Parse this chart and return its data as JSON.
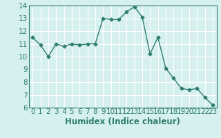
{
  "x": [
    0,
    1,
    2,
    3,
    4,
    5,
    6,
    7,
    8,
    9,
    10,
    11,
    12,
    13,
    14,
    15,
    16,
    17,
    18,
    19,
    20,
    21,
    22,
    23
  ],
  "y": [
    11.5,
    10.9,
    10.0,
    11.0,
    10.8,
    11.0,
    10.9,
    11.0,
    11.0,
    13.0,
    12.9,
    12.9,
    13.5,
    13.9,
    13.1,
    10.2,
    11.5,
    9.1,
    8.3,
    7.5,
    7.4,
    7.5,
    6.8,
    6.2
  ],
  "xlabel": "Humidex (Indice chaleur)",
  "ylim": [
    6,
    14
  ],
  "xlim": [
    -0.5,
    23.5
  ],
  "yticks": [
    6,
    7,
    8,
    9,
    10,
    11,
    12,
    13,
    14
  ],
  "xticks": [
    0,
    1,
    2,
    3,
    4,
    5,
    6,
    7,
    8,
    9,
    10,
    11,
    12,
    13,
    14,
    15,
    16,
    17,
    18,
    19,
    20,
    21,
    22,
    23
  ],
  "line_color": "#2e7d6e",
  "marker": "D",
  "marker_size": 2.5,
  "bg_color": "#d6f0ef",
  "grid_color": "#ffffff",
  "tick_color": "#2e7d6e",
  "label_color": "#2e7d6e",
  "font_size": 7.5,
  "xlabel_fontsize": 8.5,
  "linewidth": 1.0
}
